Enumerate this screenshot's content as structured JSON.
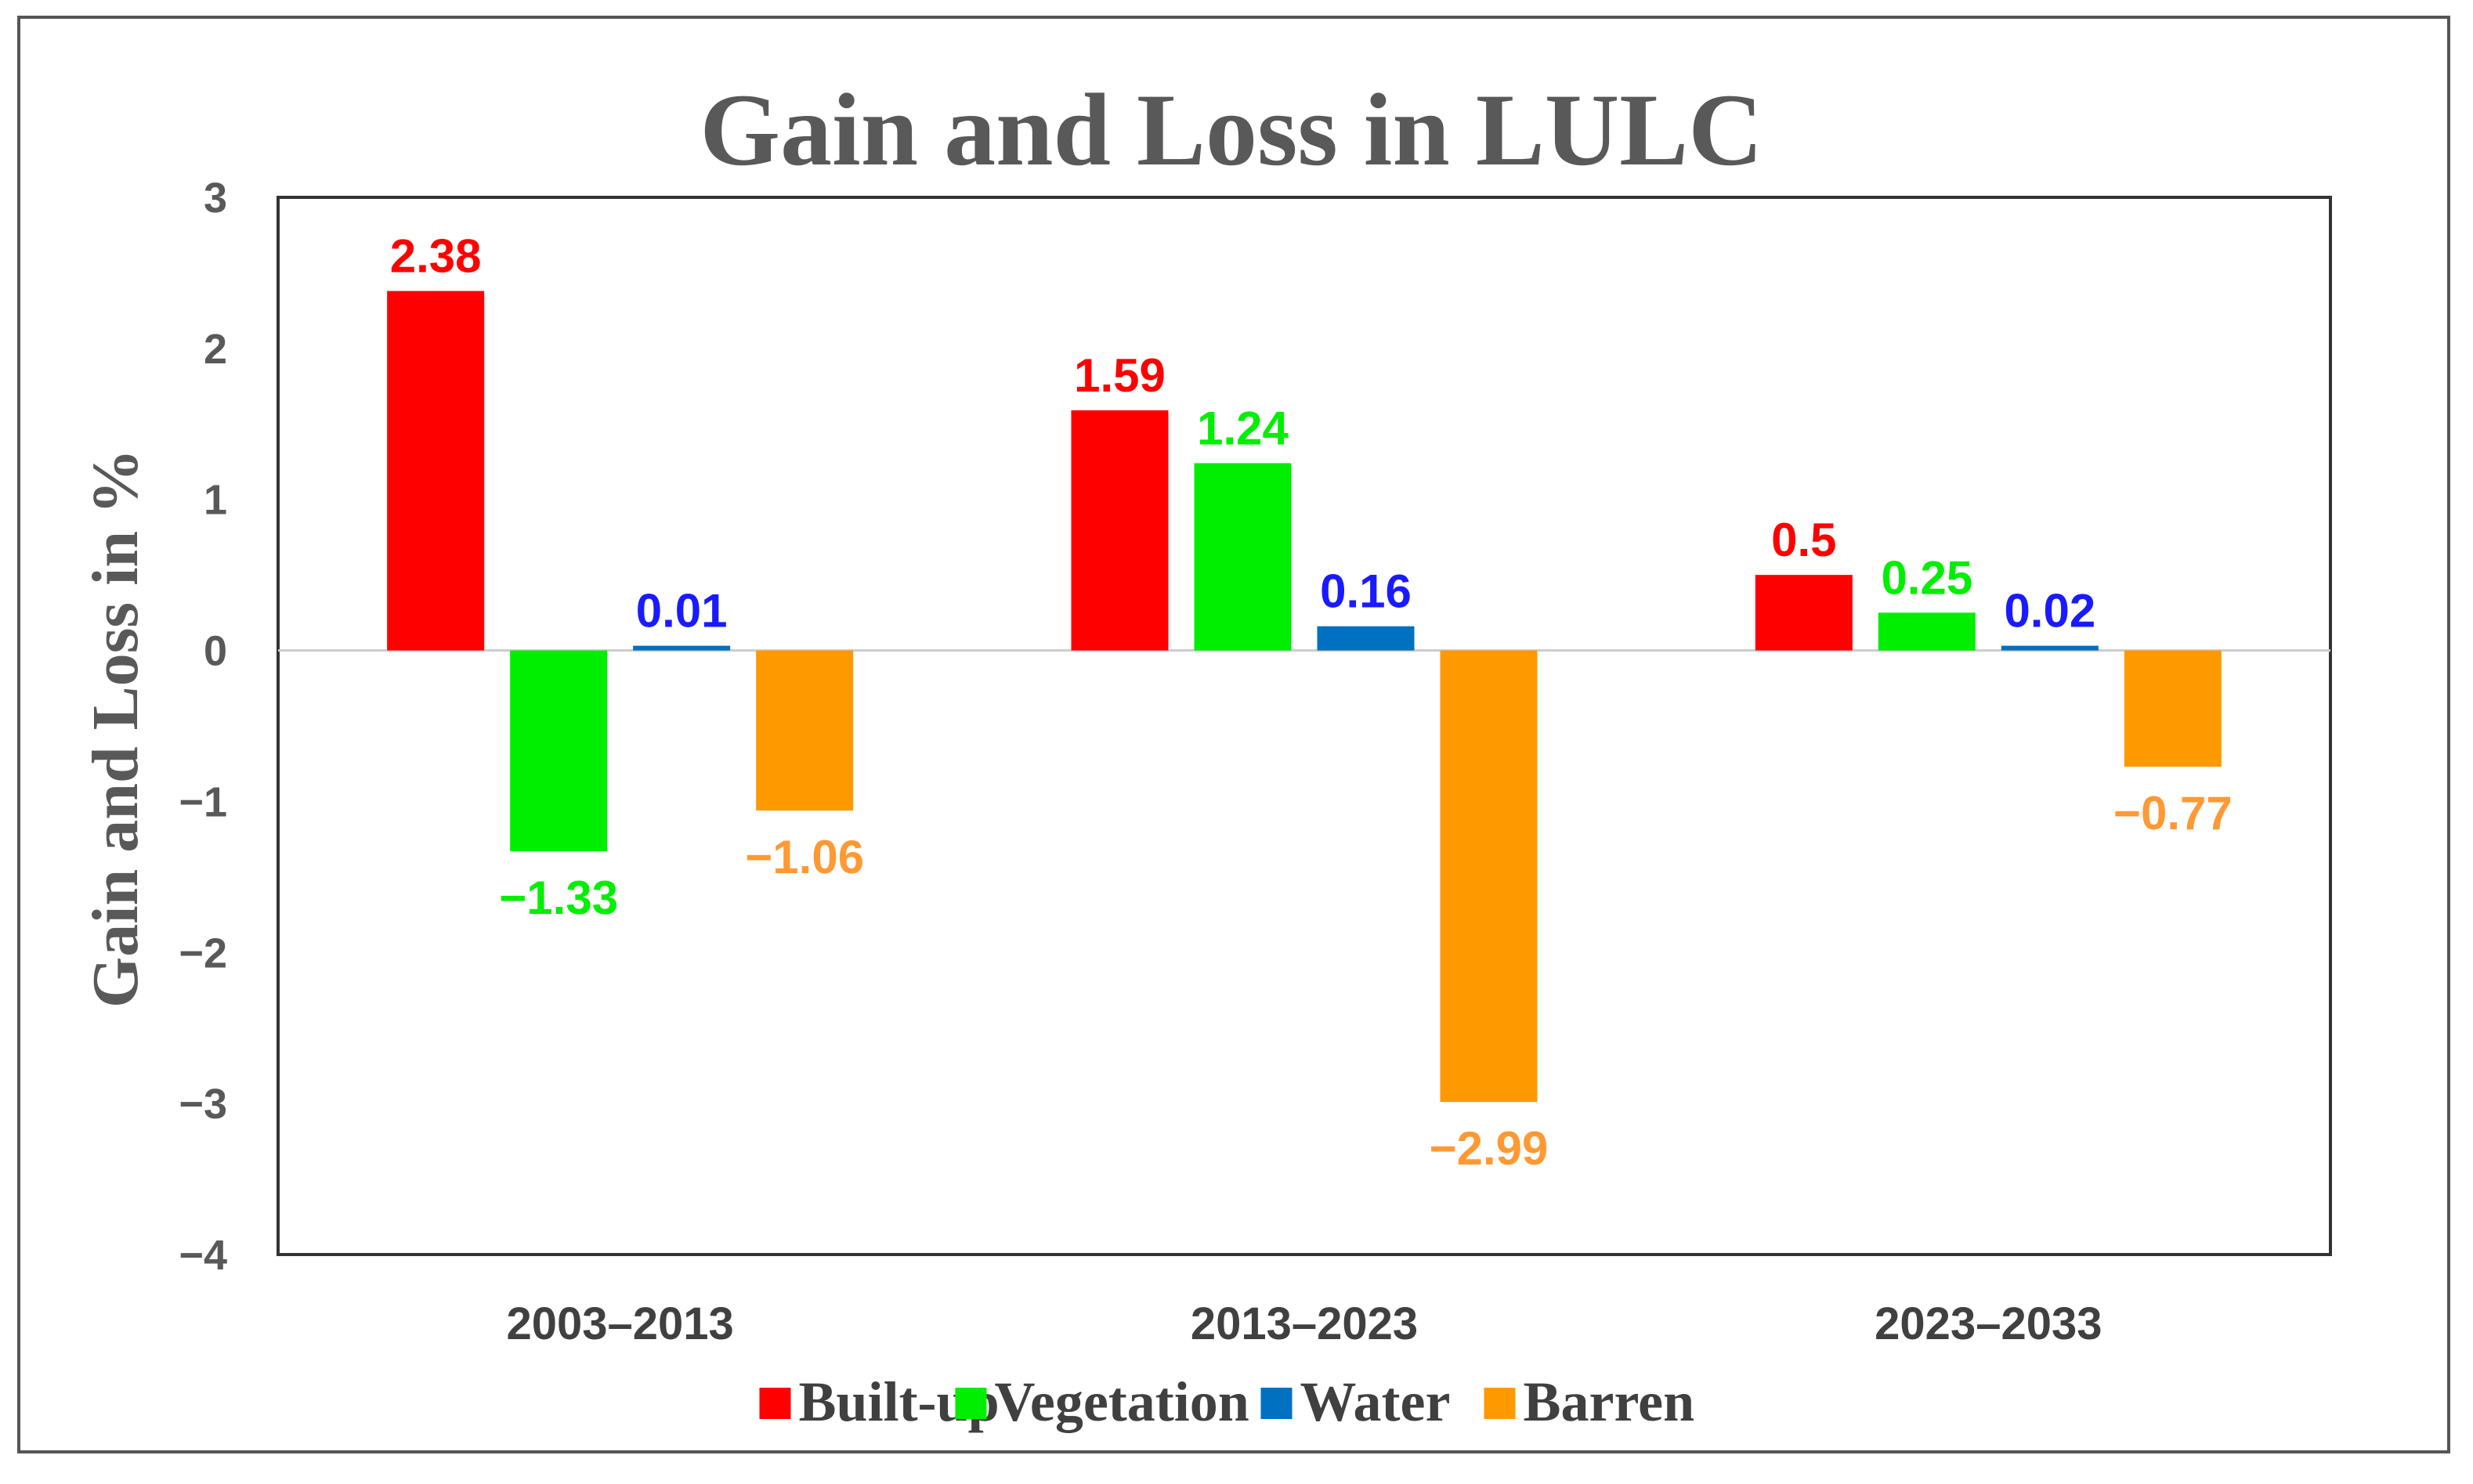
{
  "chart_data": {
    "type": "bar",
    "title": "Gain and Loss in LULC",
    "xlabel": "",
    "ylabel": "Gain and Loss in %",
    "ylim": [
      -4,
      3
    ],
    "yticks": [
      3,
      2,
      1,
      0,
      -1,
      -2,
      -3,
      -4
    ],
    "ytick_labels": [
      "3",
      "2",
      "1",
      "0",
      "−1",
      "−2",
      "−3",
      "−4"
    ],
    "grid": false,
    "legend_position": "bottom",
    "categories": [
      "2003–2013",
      "2013–2023",
      "2023–2033"
    ],
    "series": [
      {
        "name": "Built-up",
        "color": "#ff0000",
        "label_color": "#ff0000",
        "values": [
          2.38,
          1.59,
          0.5
        ],
        "labels": [
          "2.38",
          "1.59",
          "0.5"
        ]
      },
      {
        "name": "Vegetation",
        "color": "#00ee00",
        "label_color": "#00ee00",
        "values": [
          -1.33,
          1.24,
          0.25
        ],
        "labels": [
          "−1.33",
          "1.24",
          "0.25"
        ]
      },
      {
        "name": "Water",
        "color": "#0070c0",
        "label_color": "#1a1aff",
        "values": [
          0.01,
          0.16,
          0.02
        ],
        "labels": [
          "0.01",
          "0.16",
          "0.02"
        ]
      },
      {
        "name": "Barren",
        "color": "#ff9900",
        "label_color": "#ff9933",
        "values": [
          -1.06,
          -2.99,
          -0.77
        ],
        "labels": [
          "−1.06",
          "−2.99",
          "−0.77"
        ]
      }
    ]
  }
}
